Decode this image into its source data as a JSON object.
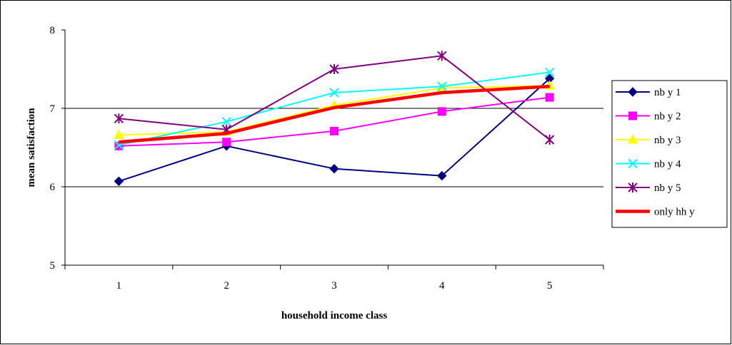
{
  "chart_data": {
    "type": "line",
    "title": "",
    "xlabel": "household income class",
    "ylabel": "mean satisfaction",
    "categories": [
      "1",
      "2",
      "3",
      "4",
      "5"
    ],
    "ylim": [
      5,
      8
    ],
    "yticks": [
      "5",
      "6",
      "7",
      "8"
    ],
    "grid": "horizontal major gridlines",
    "legend": "right",
    "series": [
      {
        "name": "nb y 1",
        "color": "#000080",
        "marker": "diamond",
        "values": [
          6.07,
          6.52,
          6.23,
          6.14,
          7.38
        ]
      },
      {
        "name": "nb y 2",
        "color": "#FF00FF",
        "marker": "square",
        "values": [
          6.52,
          6.57,
          6.71,
          6.96,
          7.14
        ]
      },
      {
        "name": "nb y 3",
        "color": "#FFFF00",
        "marker": "triangle",
        "values": [
          6.66,
          6.7,
          7.04,
          7.26,
          7.29
        ]
      },
      {
        "name": "nb y 4",
        "color": "#00FFFF",
        "marker": "x",
        "values": [
          6.53,
          6.83,
          7.2,
          7.28,
          7.46
        ]
      },
      {
        "name": "nb y 5",
        "color": "#800080",
        "marker": "star",
        "values": [
          6.87,
          6.73,
          7.5,
          7.67,
          6.6
        ]
      },
      {
        "name": "only hh y",
        "color": "#FF0000",
        "marker": "none",
        "values": [
          6.57,
          6.68,
          7.01,
          7.2,
          7.28
        ]
      }
    ]
  }
}
